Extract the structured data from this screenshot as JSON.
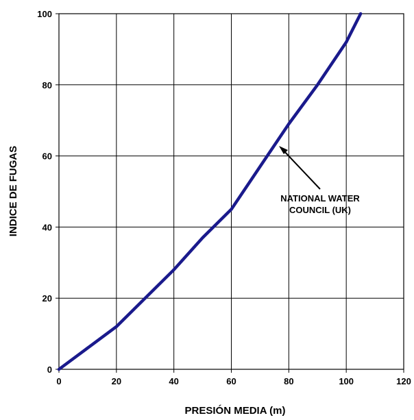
{
  "chart_data": {
    "type": "line",
    "title": "",
    "xlabel": "PRESIÓN MEDIA (m)",
    "ylabel": "INDICE DE FUGAS",
    "xlim": [
      0,
      120
    ],
    "ylim": [
      0,
      100
    ],
    "xticks": [
      "0",
      "20",
      "40",
      "60",
      "80",
      "100",
      "120"
    ],
    "yticks": [
      "0",
      "20",
      "40",
      "60",
      "80",
      "100"
    ],
    "grid": true,
    "series": [
      {
        "color": "#1a1a8c",
        "x": [
          0,
          10,
          20,
          30,
          40,
          50,
          60,
          70,
          80,
          90,
          100,
          105
        ],
        "y": [
          0,
          6,
          12,
          20,
          28,
          37,
          45,
          57,
          69,
          80,
          92,
          100
        ]
      }
    ],
    "annotation": {
      "text_line1": "NATIONAL WATER",
      "text_line2": "COUNCIL (UK)",
      "target": [
        76,
        65
      ]
    }
  }
}
